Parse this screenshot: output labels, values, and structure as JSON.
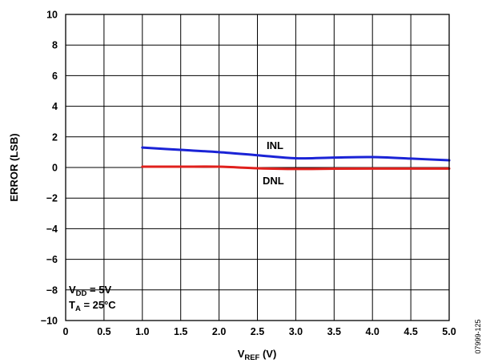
{
  "chart_data": {
    "type": "line",
    "xlabel_main": "V",
    "xlabel_sub": "REF",
    "xlabel_unit": " (V)",
    "ylabel": "ERROR (LSB)",
    "xlim": [
      0,
      5.0
    ],
    "ylim": [
      -10,
      10
    ],
    "x_ticks": [
      "0",
      "0.5",
      "1.0",
      "1.5",
      "2.0",
      "2.5",
      "3.0",
      "3.5",
      "4.0",
      "4.5",
      "5.0"
    ],
    "y_ticks": [
      "10",
      "8",
      "6",
      "4",
      "2",
      "0",
      "−2",
      "−4",
      "−6",
      "−8",
      "−10"
    ],
    "grid": true,
    "series": [
      {
        "name": "INL",
        "color": "#1a23d6",
        "x": [
          1.0,
          1.5,
          2.0,
          2.5,
          3.0,
          3.5,
          4.0,
          4.5,
          5.0
        ],
        "y": [
          1.3,
          1.15,
          1.0,
          0.8,
          0.6,
          0.65,
          0.68,
          0.58,
          0.47
        ]
      },
      {
        "name": "DNL",
        "color": "#e0201c",
        "x": [
          1.0,
          1.5,
          2.0,
          2.5,
          3.0,
          3.5,
          4.0,
          4.5,
          5.0
        ],
        "y": [
          0.05,
          0.05,
          0.05,
          -0.05,
          -0.1,
          -0.08,
          -0.07,
          -0.07,
          -0.07
        ]
      }
    ],
    "annotations": {
      "vdd_main": "V",
      "vdd_sub": "DD",
      "vdd_rest": " = 5V",
      "ta_main": "T",
      "ta_sub": "A",
      "ta_rest": " = 25°C"
    },
    "figure_code": "07999-125"
  }
}
